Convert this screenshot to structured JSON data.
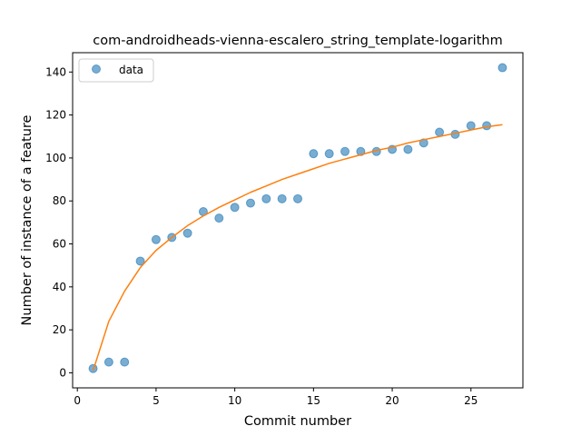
{
  "chart_data": {
    "type": "scatter",
    "title": "com-androidheads-vienna-escalero_string_template-logarithm",
    "xlabel": "Commit number",
    "ylabel": "Number of instance of a feature",
    "xlim": [
      -0.3,
      28.3
    ],
    "ylim": [
      -7,
      149
    ],
    "xticks": [
      0,
      5,
      10,
      15,
      20,
      25
    ],
    "yticks": [
      0,
      20,
      40,
      60,
      80,
      100,
      120,
      140
    ],
    "legend": {
      "position": "top-left",
      "entries": [
        "data"
      ]
    },
    "grid": false,
    "series": [
      {
        "name": "data",
        "kind": "scatter",
        "color": "#1f77b4",
        "x": [
          1,
          2,
          3,
          4,
          5,
          6,
          7,
          8,
          9,
          10,
          11,
          12,
          13,
          14,
          15,
          16,
          17,
          18,
          19,
          20,
          21,
          22,
          23,
          24,
          25,
          26,
          27
        ],
        "y": [
          2,
          5,
          5,
          52,
          62,
          63,
          65,
          75,
          72,
          77,
          79,
          81,
          81,
          81,
          102,
          102,
          103,
          103,
          103,
          104,
          104,
          107,
          112,
          111,
          115,
          115,
          142
        ]
      },
      {
        "kind": "line",
        "color": "#ff7f0e",
        "x": [
          1,
          2,
          3,
          4,
          5,
          6,
          7,
          8,
          9,
          10,
          11,
          12,
          13,
          14,
          15,
          16,
          17,
          18,
          19,
          20,
          21,
          22,
          23,
          24,
          25,
          26,
          27
        ],
        "y": [
          1,
          24,
          38,
          49,
          57,
          63,
          68.5,
          73,
          77,
          80.5,
          84,
          87,
          90,
          92.5,
          95,
          97.5,
          99.5,
          101.5,
          103.5,
          105,
          107,
          108.5,
          110,
          111.5,
          113,
          114.5,
          115.5
        ]
      }
    ]
  }
}
